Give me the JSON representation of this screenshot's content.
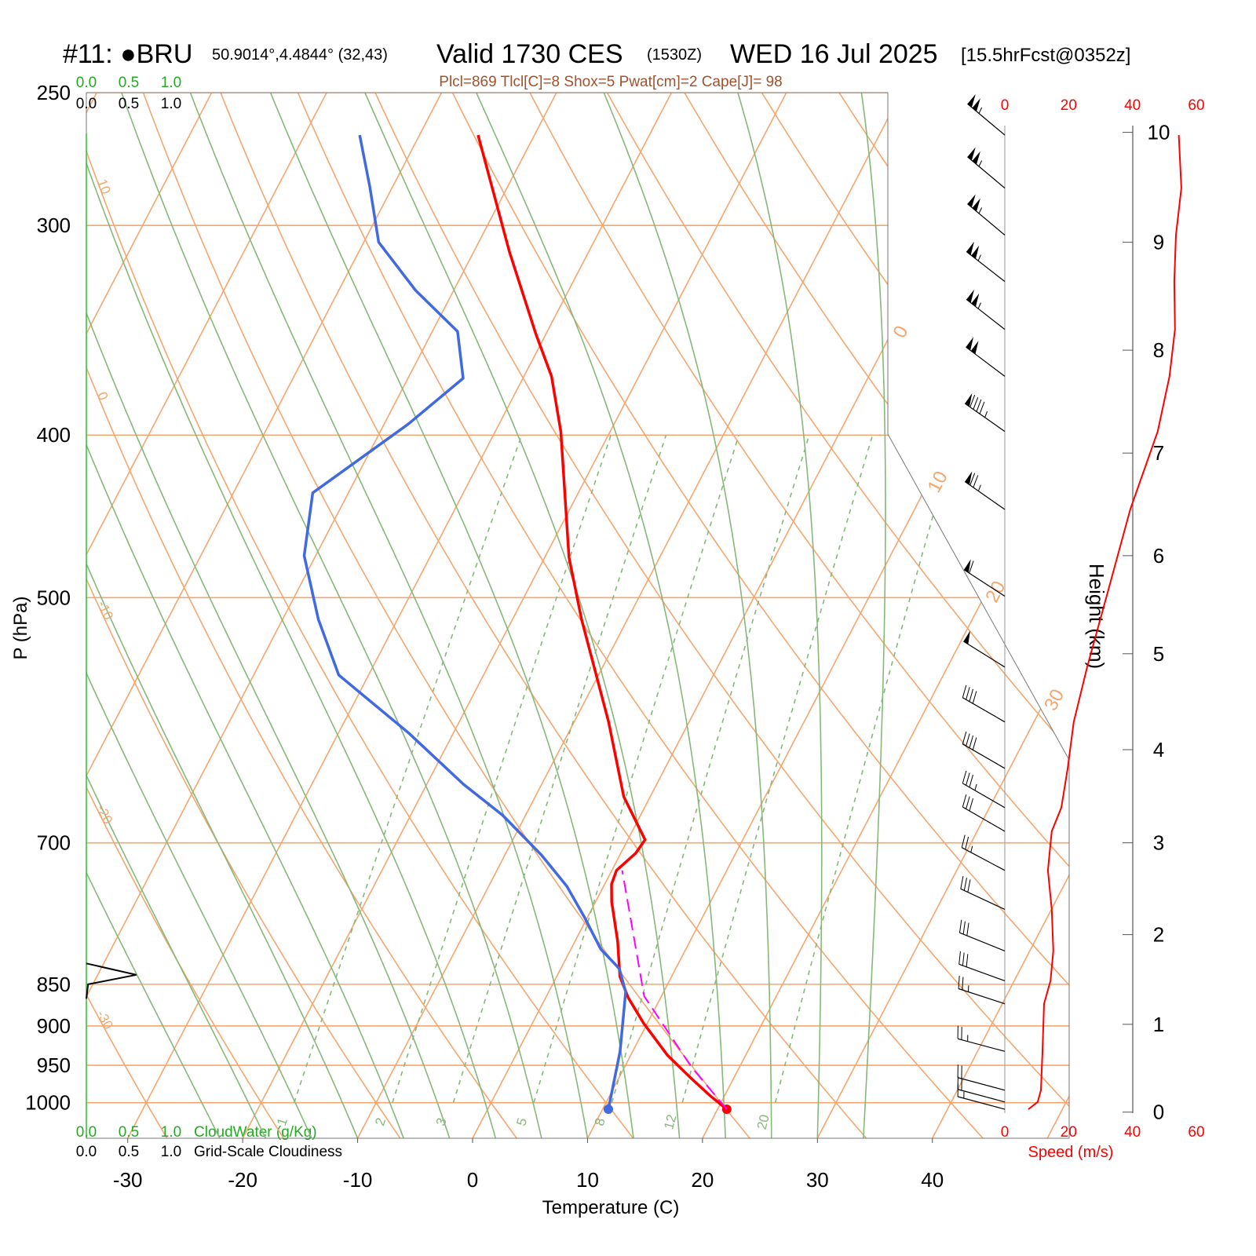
{
  "chart_data": {
    "type": "skewt",
    "title": "#11: ●BRU",
    "location": "50.9014°,4.4844° (32,43)",
    "valid": "Valid 1730 CES",
    "utc": "(1530Z)",
    "date": "WED 16 Jul 2025",
    "forecast": "[15.5hrFcst@0352z]",
    "subtitle": "Plcl=869 Tlcl[C]=8 Shox=5 Pwat[cm]=2 Cape[J]= 98",
    "xlabel": "Temperature (C)",
    "ylabel": "P (hPa)",
    "xlim": [
      -33.6,
      51.9
    ],
    "xticks": [
      -30,
      -20,
      -10,
      0,
      10,
      20,
      30,
      40
    ],
    "ylim": [
      250,
      1050
    ],
    "log_y": true,
    "yticks": [
      250,
      300,
      400,
      500,
      700,
      850,
      900,
      950,
      1000
    ],
    "series": [
      {
        "color": "#ff0000",
        "dashed": false,
        "p": [
          1009,
          991,
          967,
          937,
          897,
          866,
          841,
          801,
          759,
          741,
          727,
          710,
          697,
          657,
          593,
          515,
          473,
          398,
          369,
          348,
          311,
          265
        ],
        "values": [
          20.8,
          18.8,
          16.3,
          13.2,
          9.7,
          7.2,
          5.5,
          3.7,
          1.4,
          0.6,
          0.4,
          1.3,
          1.5,
          -2.3,
          -7.0,
          -14.0,
          -17.9,
          -24.3,
          -27.6,
          -30.9,
          -36.9,
          -44.9
        ]
      },
      {
        "color": "#4169e1",
        "dashed": false,
        "p": [
          1009,
          932,
          859,
          832,
          810,
          776,
          743,
          712,
          674,
          646,
          602,
          556,
          515,
          472,
          433,
          394,
          370,
          347,
          328,
          307,
          285,
          265
        ],
        "values": [
          10.5,
          8.9,
          6.7,
          5.1,
          2.6,
          -0.2,
          -3.2,
          -6.8,
          -12.0,
          -16.8,
          -23.9,
          -32.6,
          -36.9,
          -41.0,
          -43.1,
          -37.9,
          -35.2,
          -37.8,
          -43.3,
          -48.7,
          -51.9,
          -55.2
        ]
      },
      {
        "color": "#ff00ff",
        "dashed": true,
        "p": [
          1009,
          952,
          864,
          727
        ],
        "values": [
          20.8,
          15.8,
          8.5,
          0.9
        ]
      }
    ],
    "isotherms": [
      -80,
      -70,
      -60,
      -50,
      -40,
      -30,
      -20,
      -10,
      0,
      10,
      20,
      30,
      40,
      50
    ],
    "isotherm_labels": [
      0,
      10,
      20,
      30
    ],
    "dry_adiabats": [
      -30,
      -20,
      -10,
      0,
      10,
      20,
      30,
      40,
      50,
      60,
      70,
      80,
      90,
      100,
      110,
      120
    ],
    "dry_adiabat_labels": [
      10,
      0,
      -10,
      -20,
      -30
    ],
    "moist_adiabats": [
      -22,
      -18,
      -14,
      -10,
      -6,
      -2,
      2,
      6,
      10,
      14,
      18,
      22,
      26,
      30,
      34
    ],
    "mixing_ratios": [
      1,
      2,
      3,
      5,
      8,
      12,
      20
    ],
    "mixing_ratio_range": [
      1000,
      400
    ],
    "cloudwater": {
      "label": "CloudWater (g/Kg)",
      "xlim": [
        0,
        1
      ],
      "xticks": [
        {
          "value": 0,
          "label": "0.0"
        },
        {
          "value": 0.5,
          "label": "0.5"
        },
        {
          "value": 1,
          "label": "1.0"
        }
      ]
    },
    "cloudiness": {
      "label": "Grid-Scale Cloudiness",
      "xlim": [
        0,
        1
      ],
      "xticks": [
        {
          "value": 0,
          "label": "0.0"
        },
        {
          "value": 0.5,
          "label": "0.5"
        },
        {
          "value": 1,
          "label": "1.0"
        }
      ],
      "p": [
        826,
        839,
        850,
        867
      ],
      "values": [
        0,
        0.59,
        0.02,
        0
      ]
    },
    "wind": {
      "xlabel": "Speed (m/s)",
      "xlim": [
        0,
        60
      ],
      "xticks": [
        0,
        20,
        40,
        60
      ],
      "color": "#ff0000",
      "p": [
        1009,
        999,
        983,
        932,
        873,
        846,
        812,
        767,
        727,
        689,
        667,
        632,
        593,
        550,
        499,
        443,
        398,
        369,
        346,
        324,
        304,
        285,
        265
      ],
      "speed": [
        7.4,
        10.3,
        11.3,
        11.8,
        12.3,
        14.3,
        15.2,
        14.7,
        13.5,
        14.7,
        17.7,
        19.7,
        21.6,
        25.8,
        31.9,
        39.3,
        47.9,
        51.6,
        53.3,
        53.1,
        53.6,
        55.3,
        54.5
      ],
      "direction": [
        285,
        285,
        285,
        285,
        288,
        290,
        292,
        295,
        298,
        300,
        300,
        300,
        300,
        302,
        303,
        305,
        305,
        307,
        308,
        308,
        310,
        310,
        310
      ]
    },
    "height": {
      "label": "Height (km)",
      "km": [
        0,
        1,
        2,
        3,
        4,
        5,
        6,
        7,
        8,
        9,
        10
      ],
      "p": [
        1013,
        898,
        794,
        700,
        616,
        540,
        472,
        410,
        356,
        307,
        264
      ]
    }
  }
}
